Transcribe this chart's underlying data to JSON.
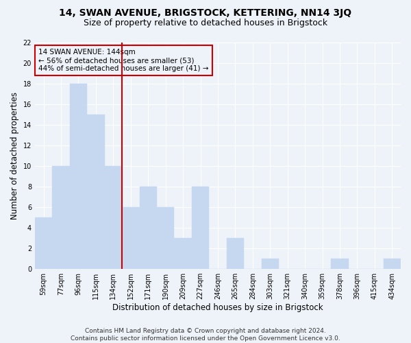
{
  "title": "14, SWAN AVENUE, BRIGSTOCK, KETTERING, NN14 3JQ",
  "subtitle": "Size of property relative to detached houses in Brigstock",
  "xlabel": "Distribution of detached houses by size in Brigstock",
  "ylabel": "Number of detached properties",
  "categories": [
    "59sqm",
    "77sqm",
    "96sqm",
    "115sqm",
    "134sqm",
    "152sqm",
    "171sqm",
    "190sqm",
    "209sqm",
    "227sqm",
    "246sqm",
    "265sqm",
    "284sqm",
    "303sqm",
    "321sqm",
    "340sqm",
    "359sqm",
    "378sqm",
    "396sqm",
    "415sqm",
    "434sqm"
  ],
  "values": [
    5,
    10,
    18,
    15,
    10,
    6,
    8,
    6,
    3,
    8,
    0,
    3,
    0,
    1,
    0,
    0,
    0,
    1,
    0,
    0,
    1
  ],
  "bar_color": "#c5d8f0",
  "bar_edgecolor": "#c5d8f0",
  "vline_x": 4.5,
  "vline_color": "#cc0000",
  "annotation_text": "14 SWAN AVENUE: 144sqm\n← 56% of detached houses are smaller (53)\n44% of semi-detached houses are larger (41) →",
  "annotation_box_edgecolor": "#cc0000",
  "ylim": [
    0,
    22
  ],
  "yticks": [
    0,
    2,
    4,
    6,
    8,
    10,
    12,
    14,
    16,
    18,
    20,
    22
  ],
  "footer": "Contains HM Land Registry data © Crown copyright and database right 2024.\nContains public sector information licensed under the Open Government Licence v3.0.",
  "bg_color": "#eef2f9",
  "grid_color": "#ffffff",
  "title_fontsize": 10,
  "subtitle_fontsize": 9,
  "axis_label_fontsize": 8.5,
  "tick_fontsize": 7,
  "footer_fontsize": 6.5,
  "ann_fontsize": 7.5
}
